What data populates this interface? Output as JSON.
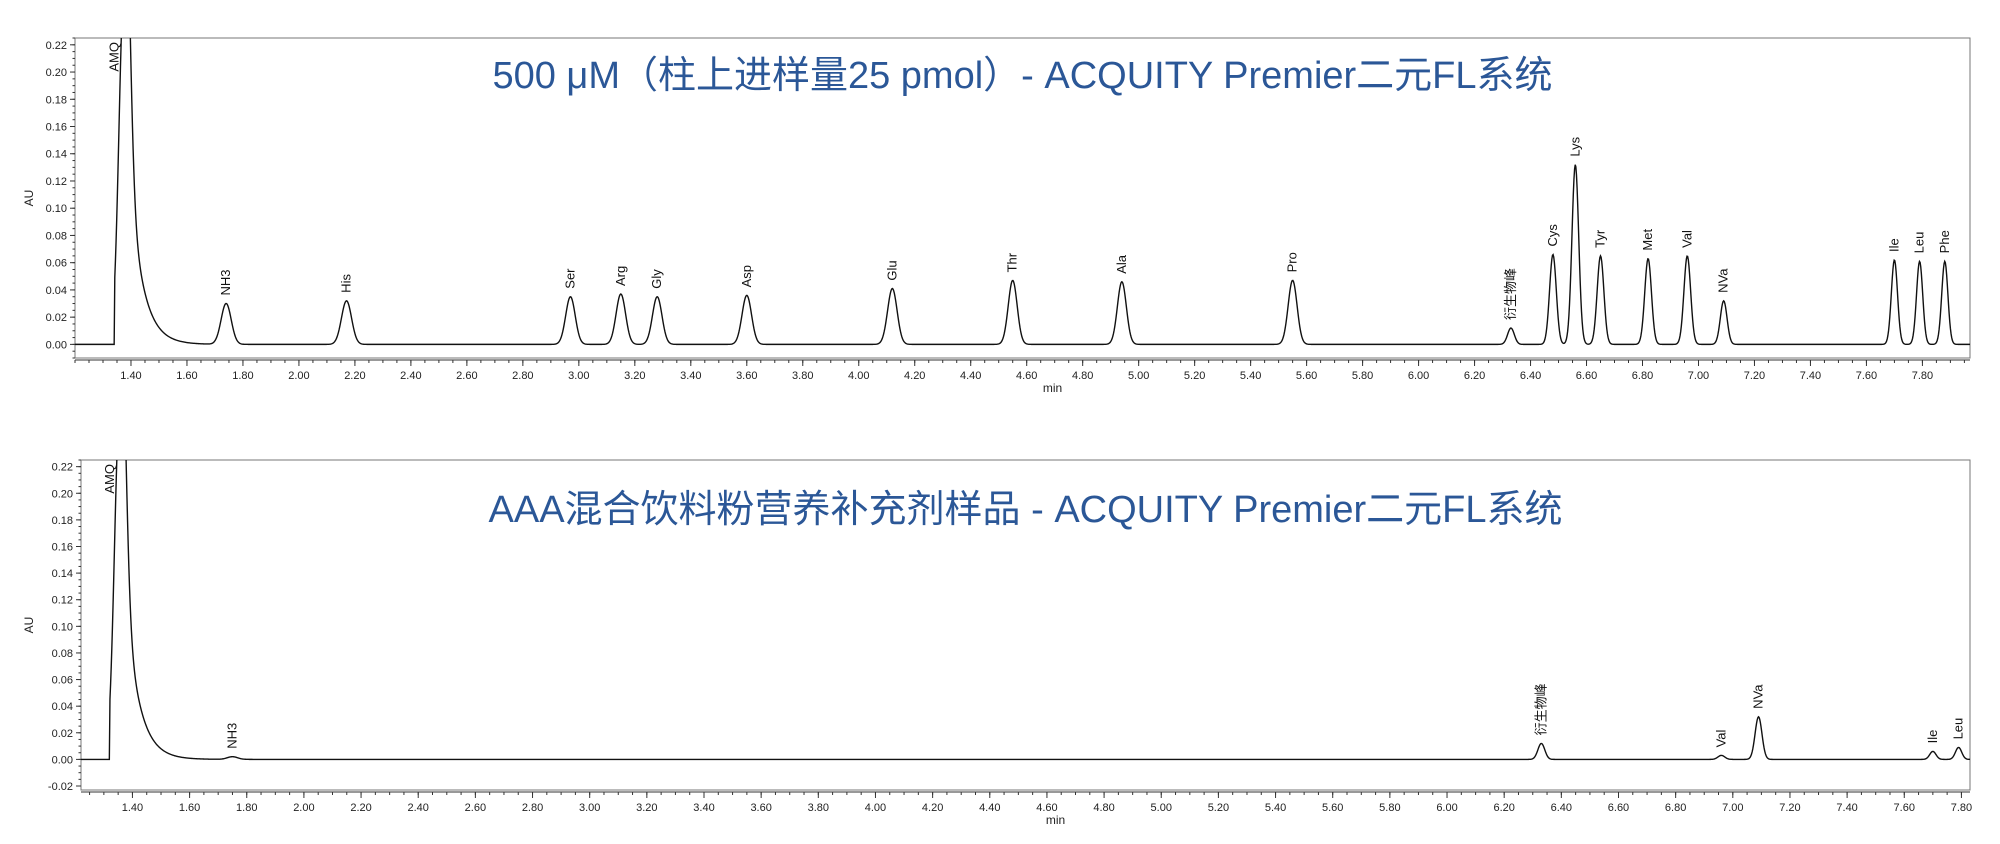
{
  "chart_data": [
    {
      "type": "line",
      "title": "500 μM（柱上进样量25 pmol）- ACQUITY Premier二元FL系统",
      "xlabel": "min",
      "ylabel": "AU",
      "xlim": [
        1.2,
        7.97
      ],
      "ylim": [
        -0.01,
        0.225
      ],
      "grid": false,
      "x_ticks": [
        "1.40",
        "1.60",
        "1.80",
        "2.00",
        "2.20",
        "2.40",
        "2.60",
        "2.80",
        "3.00",
        "3.20",
        "3.40",
        "3.60",
        "3.80",
        "4.00",
        "4.20",
        "4.40",
        "4.60",
        "4.80",
        "5.00",
        "5.20",
        "5.40",
        "5.60",
        "5.80",
        "6.00",
        "6.20",
        "6.40",
        "6.60",
        "6.80",
        "7.00",
        "7.20",
        "7.40",
        "7.60",
        "7.80"
      ],
      "y_ticks": [
        "0.00",
        "0.02",
        "0.04",
        "0.06",
        "0.08",
        "0.10",
        "0.12",
        "0.14",
        "0.16",
        "0.18",
        "0.20",
        "0.22"
      ],
      "peaks": [
        {
          "label": "AMQ",
          "x": 1.375,
          "y": 0.26,
          "width": 0.018
        },
        {
          "label": "NH3",
          "x": 1.74,
          "y": 0.03,
          "width": 0.018
        },
        {
          "label": "His",
          "x": 2.17,
          "y": 0.032,
          "width": 0.018
        },
        {
          "label": "Ser",
          "x": 2.97,
          "y": 0.035,
          "width": 0.017
        },
        {
          "label": "Arg",
          "x": 3.15,
          "y": 0.037,
          "width": 0.017
        },
        {
          "label": "Gly",
          "x": 3.28,
          "y": 0.035,
          "width": 0.017
        },
        {
          "label": "Asp",
          "x": 3.6,
          "y": 0.036,
          "width": 0.017
        },
        {
          "label": "Glu",
          "x": 4.12,
          "y": 0.041,
          "width": 0.017
        },
        {
          "label": "Thr",
          "x": 4.55,
          "y": 0.047,
          "width": 0.016
        },
        {
          "label": "Ala",
          "x": 4.94,
          "y": 0.046,
          "width": 0.016
        },
        {
          "label": "Pro",
          "x": 5.55,
          "y": 0.047,
          "width": 0.016
        },
        {
          "label": "衍生物峰",
          "x": 6.33,
          "y": 0.012,
          "width": 0.012
        },
        {
          "label": "Cys",
          "x": 6.48,
          "y": 0.066,
          "width": 0.012
        },
        {
          "label": "Lys",
          "x": 6.56,
          "y": 0.132,
          "width": 0.012
        },
        {
          "label": "Tyr",
          "x": 6.65,
          "y": 0.065,
          "width": 0.012
        },
        {
          "label": "Met",
          "x": 6.82,
          "y": 0.063,
          "width": 0.012
        },
        {
          "label": "Val",
          "x": 6.96,
          "y": 0.065,
          "width": 0.012
        },
        {
          "label": "NVa",
          "x": 7.09,
          "y": 0.032,
          "width": 0.012
        },
        {
          "label": "Ile",
          "x": 7.7,
          "y": 0.062,
          "width": 0.011
        },
        {
          "label": "Leu",
          "x": 7.79,
          "y": 0.061,
          "width": 0.011
        },
        {
          "label": "Phe",
          "x": 7.88,
          "y": 0.061,
          "width": 0.011
        }
      ],
      "label_peaks": [
        "NH3",
        "His",
        "Ser",
        "Arg",
        "Gly",
        "Asp",
        "Glu",
        "Thr",
        "Ala",
        "Pro",
        "衍生物峰",
        "Cys",
        "Lys",
        "Tyr",
        "Met",
        "Val",
        "NVa",
        "Ile",
        "Leu",
        "Phe"
      ],
      "solvent_label": {
        "text": "AMQ",
        "x": 1.355
      }
    },
    {
      "type": "line",
      "title": "AAA混合饮料粉营养补充剂样品 - ACQUITY Premier二元FL系统",
      "xlabel": "min",
      "ylabel": "AU",
      "xlim": [
        1.22,
        7.83
      ],
      "ylim": [
        -0.023,
        0.225
      ],
      "grid": false,
      "x_ticks": [
        "1.40",
        "1.60",
        "1.80",
        "2.00",
        "2.20",
        "2.40",
        "2.60",
        "2.80",
        "3.00",
        "3.20",
        "3.40",
        "3.60",
        "3.80",
        "4.00",
        "4.20",
        "4.40",
        "4.60",
        "4.80",
        "5.00",
        "5.20",
        "5.40",
        "5.60",
        "5.80",
        "6.00",
        "6.20",
        "6.40",
        "6.60",
        "6.80",
        "7.00",
        "7.20",
        "7.40",
        "7.60",
        "7.80"
      ],
      "y_ticks": [
        "-0.02",
        "0.00",
        "0.02",
        "0.04",
        "0.06",
        "0.08",
        "0.10",
        "0.12",
        "0.14",
        "0.16",
        "0.18",
        "0.20",
        "0.22"
      ],
      "peaks": [
        {
          "label": "AMQ",
          "x": 1.355,
          "y": 0.26,
          "width": 0.018
        },
        {
          "label": "NH3",
          "x": 1.75,
          "y": 0.002,
          "width": 0.018
        },
        {
          "label": "衍生物峰",
          "x": 6.33,
          "y": 0.012,
          "width": 0.012
        },
        {
          "label": "Val",
          "x": 6.96,
          "y": 0.003,
          "width": 0.012
        },
        {
          "label": "NVa",
          "x": 7.09,
          "y": 0.032,
          "width": 0.012
        },
        {
          "label": "Ile",
          "x": 7.7,
          "y": 0.006,
          "width": 0.011
        },
        {
          "label": "Leu",
          "x": 7.79,
          "y": 0.009,
          "width": 0.011
        }
      ],
      "label_peaks": [
        "NH3",
        "衍生物峰",
        "Val",
        "NVa",
        "Ile",
        "Leu"
      ],
      "solvent_label": {
        "text": "AMQ",
        "x": 1.335
      }
    }
  ]
}
